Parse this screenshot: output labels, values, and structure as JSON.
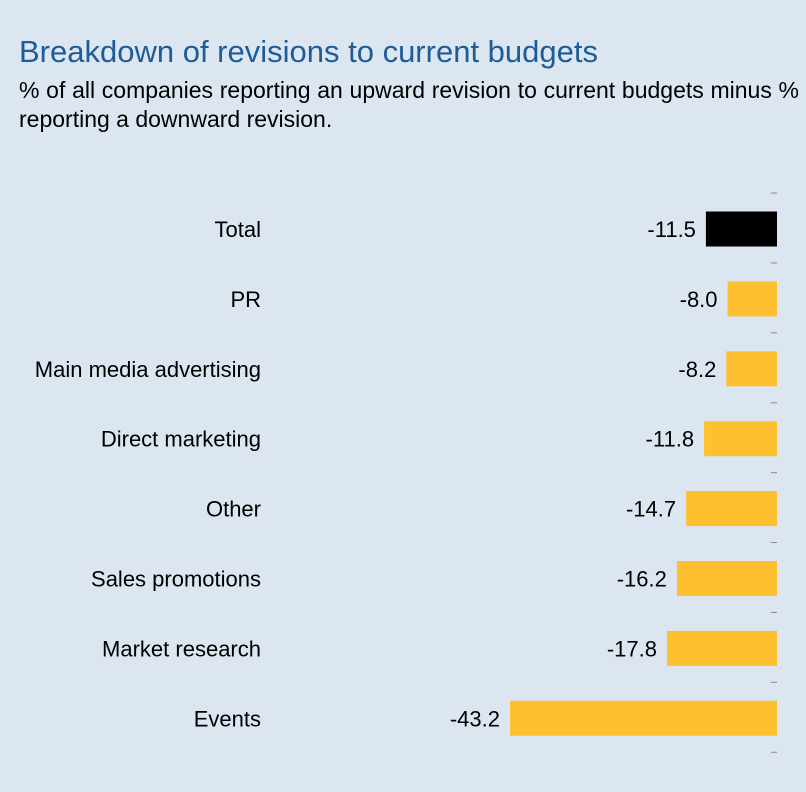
{
  "title": "Breakdown of revisions to current budgets",
  "subtitle": "% of all companies reporting an upward revision to current budgets minus % reporting a downward revision.",
  "colors": {
    "background": "#dce6f0",
    "title": "#1d5c96",
    "highlight_bar": "#000000",
    "bar": "#fec02e"
  },
  "chart_data": {
    "type": "bar",
    "orientation": "horizontal",
    "categories": [
      "Total",
      "PR",
      "Main media advertising",
      "Direct marketing",
      "Other",
      "Sales promotions",
      "Market research",
      "Events"
    ],
    "values": [
      -11.5,
      -8.0,
      -8.2,
      -11.8,
      -14.7,
      -16.2,
      -17.8,
      -43.2
    ],
    "value_labels": [
      "-11.5",
      "-8.0",
      "-8.2",
      "-11.8",
      "-14.7",
      "-16.2",
      "-17.8",
      "-43.2"
    ],
    "highlight": [
      "Total"
    ],
    "title": "Breakdown of revisions to current budgets",
    "xlabel": "",
    "ylabel": "",
    "xlim": [
      -43.2,
      0
    ],
    "grid": false,
    "legend": "none"
  }
}
